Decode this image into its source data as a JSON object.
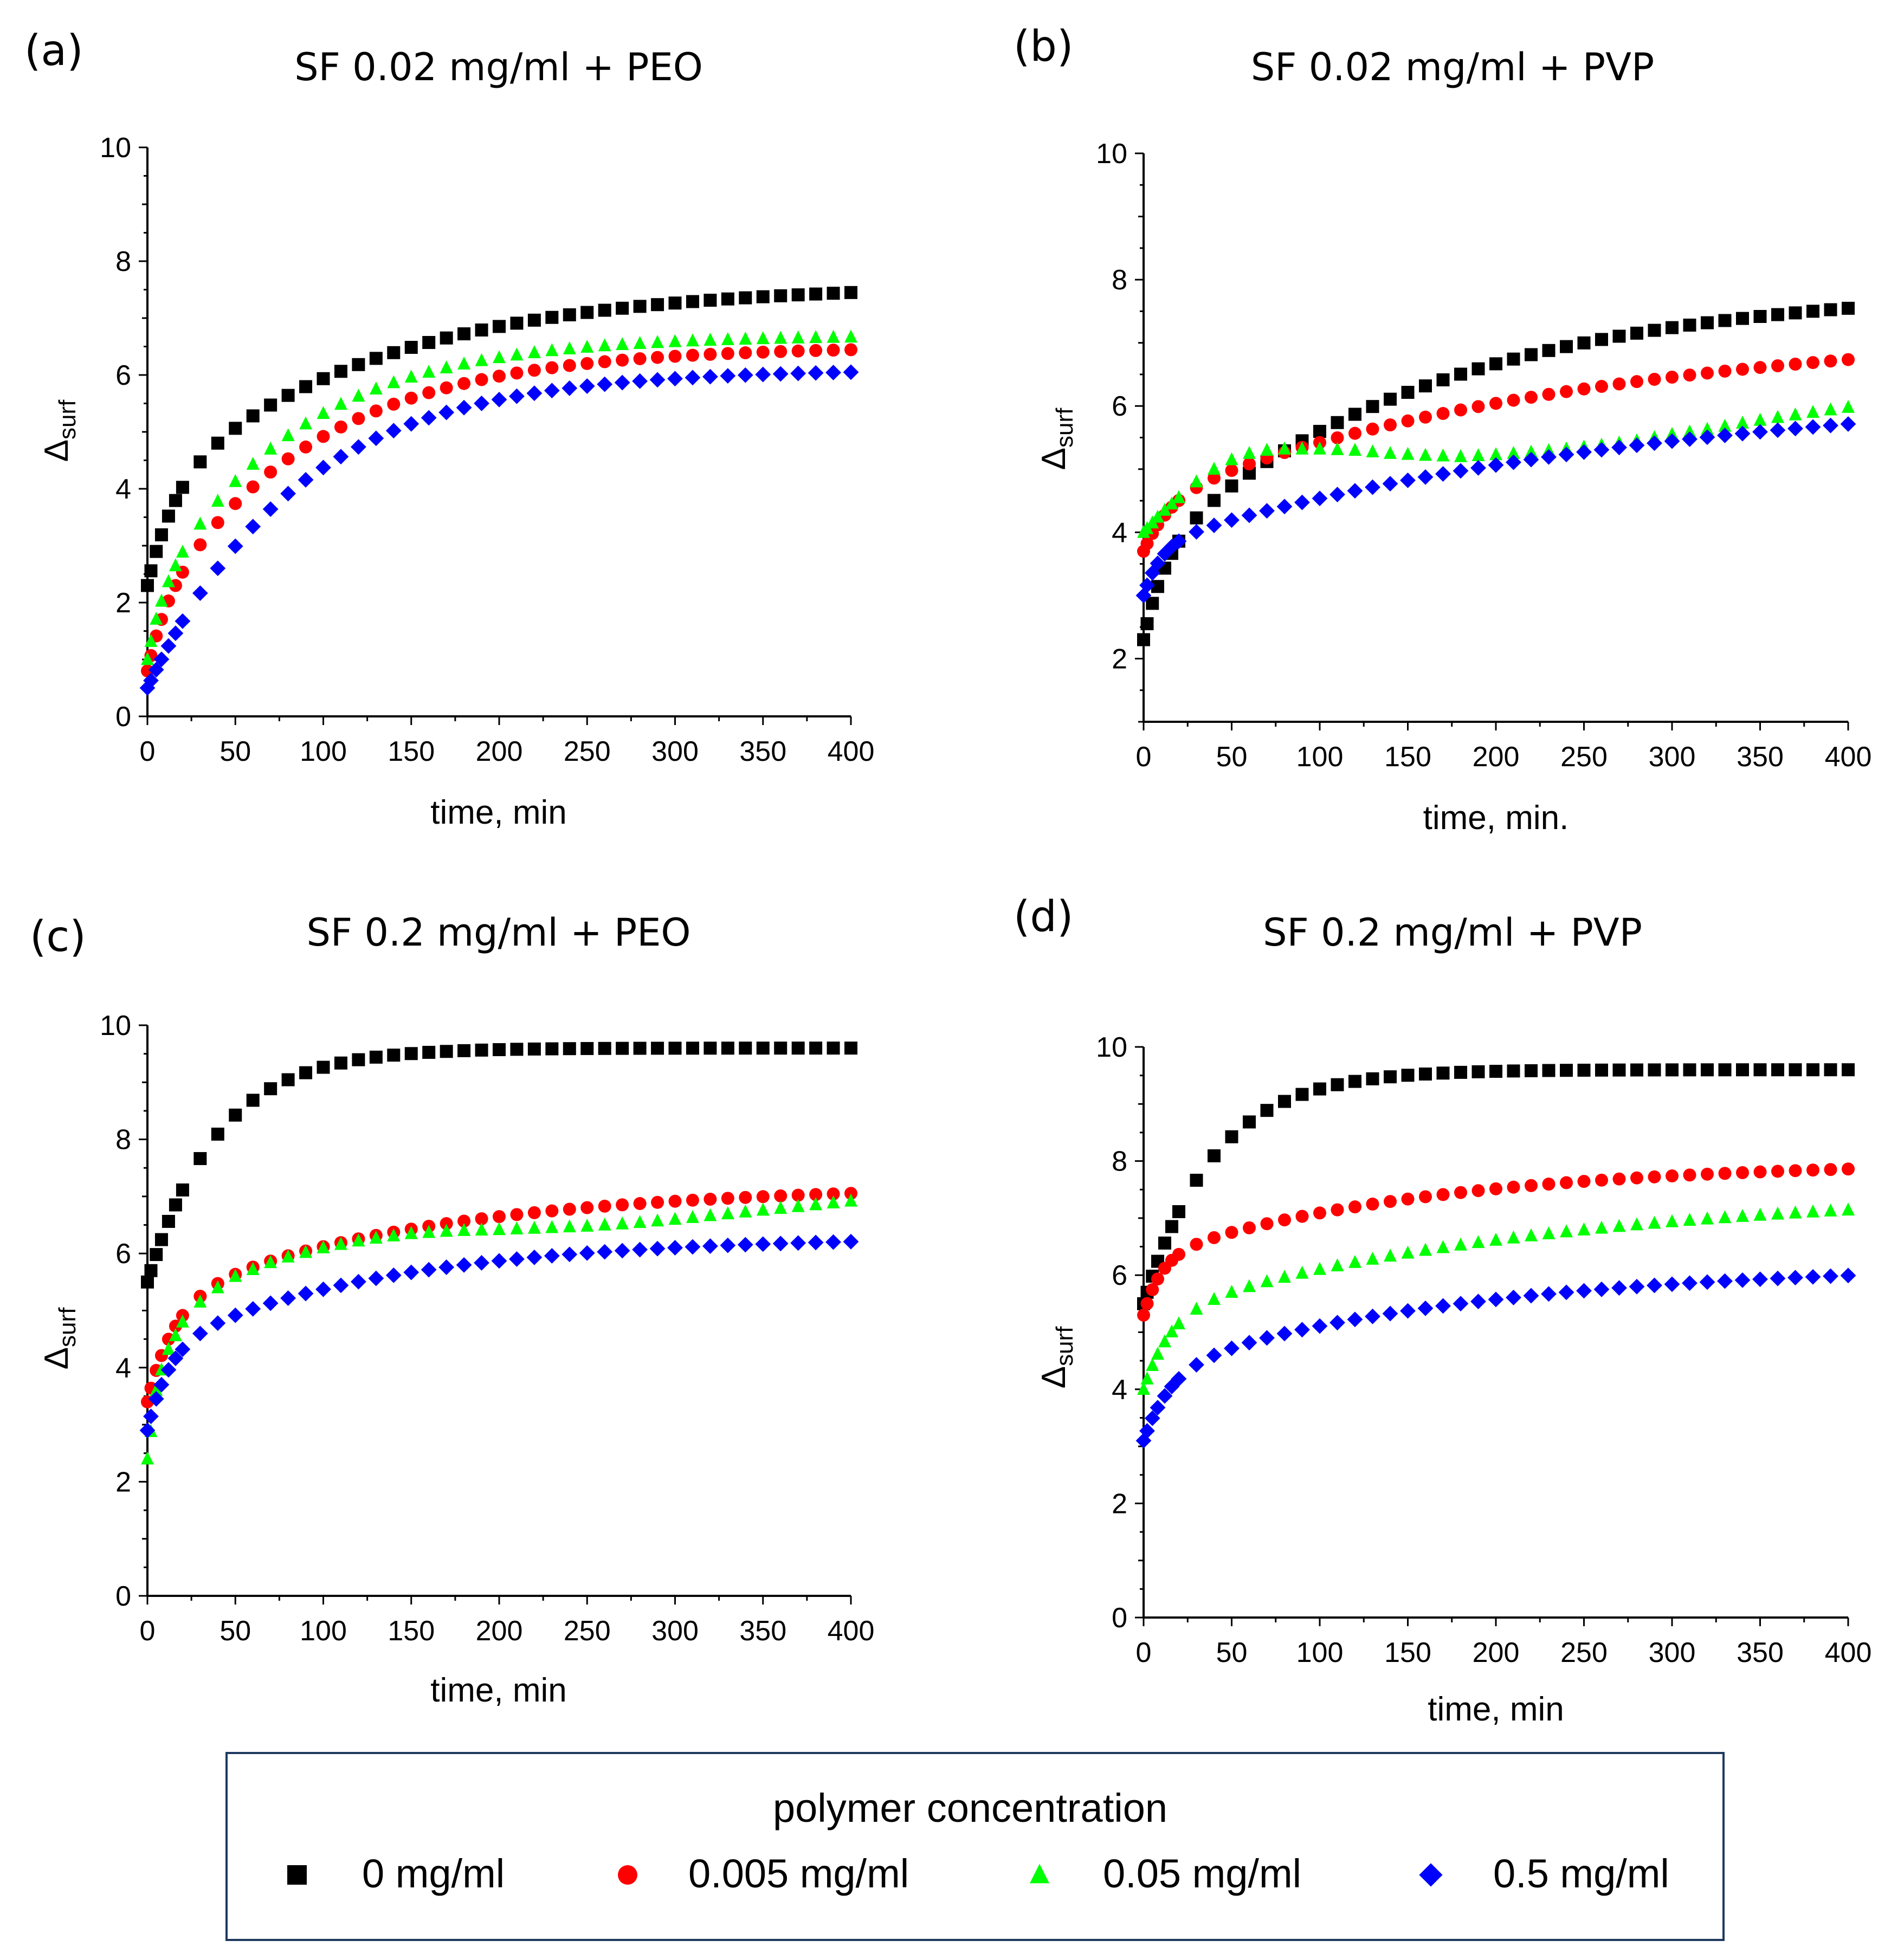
{
  "figure": {
    "legend": {
      "title": "polymer concentration",
      "entries": [
        {
          "label": "0 mg/ml",
          "marker": "square",
          "color": "#000000"
        },
        {
          "label": "0.005 mg/ml",
          "marker": "circle",
          "color": "#ff0000"
        },
        {
          "label": "0.05 mg/ml",
          "marker": "triangle",
          "color": "#00ff00"
        },
        {
          "label": "0.5 mg/ml",
          "marker": "diamond",
          "color": "#0000ff"
        }
      ],
      "border_color": "#1f3a5f"
    }
  },
  "chart_data": [
    {
      "type": "scatter",
      "panel_label": "(a)",
      "title": "SF 0.02 mg/ml + PEO",
      "xlabel": "time, min",
      "ylabel_main": "Δ",
      "ylabel_sub": "surf",
      "xlim": [
        0,
        400
      ],
      "ylim": [
        0,
        10
      ],
      "xticks": [
        "0",
        "50",
        "100",
        "150",
        "200",
        "250",
        "300",
        "350",
        "400"
      ],
      "yticks": [
        "0",
        "2",
        "4",
        "6",
        "8",
        "10"
      ],
      "series": [
        {
          "name": "0 mg/ml",
          "curve": {
            "y0": 2.3,
            "terms": [
              [
                1.6,
                15
              ],
              [
                3.7,
                125
              ]
            ]
          }
        },
        {
          "name": "0.005 mg/ml",
          "curve": {
            "y0": 0.8,
            "terms": [
              [
                0.9,
                10
              ],
              [
                4.8,
                90
              ]
            ]
          }
        },
        {
          "name": "0.05 mg/ml",
          "curve": {
            "y0": 1.0,
            "terms": [
              [
                0.9,
                8
              ],
              [
                4.8,
                80
              ]
            ]
          }
        },
        {
          "name": "0.5 mg/ml",
          "curve": {
            "y0": 0.5,
            "terms": [
              [
                5.6,
                85
              ]
            ]
          }
        }
      ]
    },
    {
      "type": "scatter",
      "panel_label": "(b)",
      "title": "SF 0.02 mg/ml + PVP",
      "xlabel": "time, min.",
      "ylabel_main": "Δ",
      "ylabel_sub": "surf",
      "xlim": [
        0,
        400
      ],
      "ylim": [
        1,
        10
      ],
      "xticks": [
        "0",
        "50",
        "100",
        "150",
        "200",
        "250",
        "300",
        "350",
        "400"
      ],
      "yticks": [
        "2",
        "4",
        "6",
        "8",
        "10"
      ],
      "series": [
        {
          "name": "0 mg/ml",
          "curve": {
            "y0": 2.3,
            "terms": [
              [
                1.3,
                12
              ],
              [
                4.3,
                160
              ]
            ]
          }
        },
        {
          "name": "0.005 mg/ml",
          "curve": {
            "y0": 3.7,
            "terms": [
              [
                0.8,
                15
              ],
              [
                2.8,
                250
              ]
            ]
          }
        },
        {
          "name": "0.05 mg/ml",
          "points": [
            [
              0,
              4.0
            ],
            [
              10,
              4.3
            ],
            [
              20,
              4.55
            ],
            [
              30,
              4.8
            ],
            [
              40,
              5.0
            ],
            [
              50,
              5.15
            ],
            [
              60,
              5.25
            ],
            [
              70,
              5.3
            ],
            [
              80,
              5.32
            ],
            [
              100,
              5.32
            ],
            [
              120,
              5.3
            ],
            [
              140,
              5.25
            ],
            [
              160,
              5.22
            ],
            [
              180,
              5.2
            ],
            [
              200,
              5.23
            ],
            [
              220,
              5.27
            ],
            [
              240,
              5.32
            ],
            [
              260,
              5.38
            ],
            [
              280,
              5.45
            ],
            [
              300,
              5.55
            ],
            [
              320,
              5.63
            ],
            [
              340,
              5.73
            ],
            [
              360,
              5.82
            ],
            [
              380,
              5.9
            ],
            [
              400,
              5.98
            ]
          ]
        },
        {
          "name": "0.5 mg/ml",
          "curve": {
            "y0": 3.0,
            "terms": [
              [
                0.8,
                10
              ],
              [
                2.6,
                300
              ]
            ]
          }
        }
      ]
    },
    {
      "type": "scatter",
      "panel_label": "(c)",
      "title": "SF 0.2 mg/ml + PEO",
      "xlabel": "time, min",
      "ylabel_main": "Δ",
      "ylabel_sub": "surf",
      "xlim": [
        0,
        400
      ],
      "ylim": [
        0,
        10
      ],
      "xticks": [
        "0",
        "50",
        "100",
        "150",
        "200",
        "250",
        "300",
        "350",
        "400"
      ],
      "yticks": [
        "0",
        "2",
        "4",
        "6",
        "8",
        "10"
      ],
      "series": [
        {
          "name": "0 mg/ml",
          "curve": {
            "y0": 5.5,
            "terms": [
              [
                4.1,
                40
              ]
            ]
          }
        },
        {
          "name": "0.005 mg/ml",
          "curve": {
            "y0": 3.4,
            "terms": [
              [
                1.7,
                15
              ],
              [
                2.1,
                150
              ]
            ]
          }
        },
        {
          "name": "0.05 mg/ml",
          "points": [
            [
              0,
              2.4
            ],
            [
              5,
              3.6
            ],
            [
              10,
              4.2
            ],
            [
              20,
              4.8
            ],
            [
              30,
              5.15
            ],
            [
              40,
              5.4
            ],
            [
              50,
              5.6
            ],
            [
              75,
              5.9
            ],
            [
              100,
              6.1
            ],
            [
              125,
              6.25
            ],
            [
              150,
              6.35
            ],
            [
              175,
              6.4
            ],
            [
              200,
              6.42
            ],
            [
              225,
              6.45
            ],
            [
              250,
              6.48
            ],
            [
              275,
              6.53
            ],
            [
              300,
              6.6
            ],
            [
              325,
              6.68
            ],
            [
              350,
              6.76
            ],
            [
              375,
              6.84
            ],
            [
              400,
              6.92
            ]
          ]
        },
        {
          "name": "0.5 mg/ml",
          "curve": {
            "y0": 2.9,
            "terms": [
              [
                1.4,
                12
              ],
              [
                2.0,
                130
              ]
            ]
          }
        }
      ]
    },
    {
      "type": "scatter",
      "panel_label": "(d)",
      "title": "SF 0.2 mg/ml + PVP",
      "xlabel": "time, min",
      "ylabel_main": "Δ",
      "ylabel_sub": "surf",
      "xlim": [
        0,
        400
      ],
      "ylim": [
        0,
        10
      ],
      "xticks": [
        "0",
        "50",
        "100",
        "150",
        "200",
        "250",
        "300",
        "350",
        "400"
      ],
      "yticks": [
        "0",
        "2",
        "4",
        "6",
        "8",
        "10"
      ],
      "series": [
        {
          "name": "0 mg/ml",
          "curve": {
            "y0": 5.5,
            "terms": [
              [
                4.1,
                40
              ]
            ]
          }
        },
        {
          "name": "0.005 mg/ml",
          "curve": {
            "y0": 5.3,
            "terms": [
              [
                1.0,
                10
              ],
              [
                1.7,
                160
              ]
            ]
          }
        },
        {
          "name": "0.05 mg/ml",
          "curve": {
            "y0": 4.0,
            "terms": [
              [
                1.3,
                15
              ],
              [
                2.2,
                220
              ]
            ]
          }
        },
        {
          "name": "0.5 mg/ml",
          "curve": {
            "y0": 3.1,
            "terms": [
              [
                1.2,
                15
              ],
              [
                1.9,
                180
              ]
            ]
          }
        }
      ]
    }
  ]
}
